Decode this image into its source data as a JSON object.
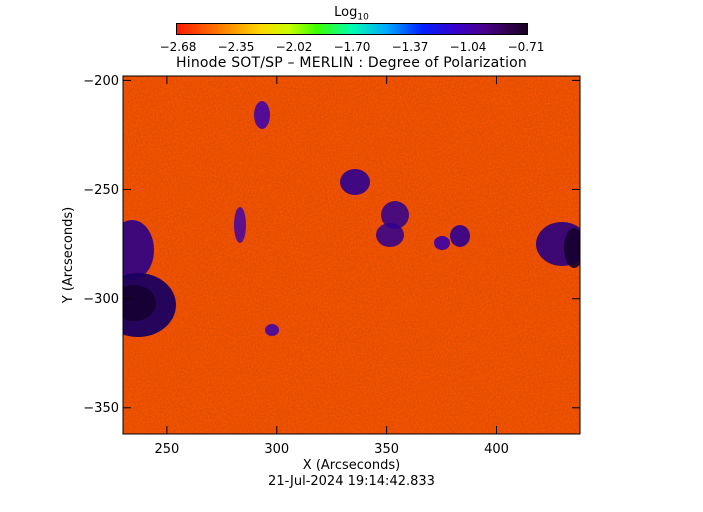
{
  "colorbar": {
    "title": "Log",
    "title_subscript": "10",
    "tick_labels": [
      "−2.68",
      "−2.35",
      "−2.02",
      "−1.70",
      "−1.37",
      "−1.04",
      "−0.71"
    ],
    "range": [
      -2.68,
      -0.71
    ],
    "colormap": "rainbow (red-orange-yellow-green-cyan-blue-purple-black)"
  },
  "plot": {
    "title": "Hinode SOT/SP – MERLIN : Degree of Polarization",
    "xlabel": "X (Arcseconds)",
    "ylabel": "Y (Arcseconds)",
    "xlim": [
      230,
      438
    ],
    "ylim": [
      -362,
      -198
    ],
    "x_ticks": [
      "250",
      "300",
      "350",
      "400"
    ],
    "y_ticks": [
      "−200",
      "−250",
      "−300",
      "−350"
    ]
  },
  "timestamp": "21-Jul-2024 19:14:42.833"
}
